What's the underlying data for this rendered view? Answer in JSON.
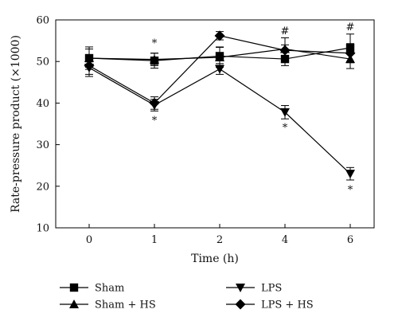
{
  "chart_data": {
    "type": "line",
    "xlabel": "Time (h)",
    "ylabel": "Rate-pressure product (×1000)",
    "ylim": [
      10,
      60
    ],
    "x": [
      0,
      1,
      2,
      4,
      6
    ],
    "x_tick_labels": [
      "0",
      "1",
      "2",
      "4",
      "6"
    ],
    "y_ticks": [
      10,
      20,
      30,
      40,
      50,
      60
    ],
    "grid": false,
    "legend_position": "bottom",
    "series": [
      {
        "name": "Sham",
        "marker": "square",
        "values": [
          50.8,
          50.2,
          51.3,
          50.6,
          53.3
        ],
        "errors": [
          2.7,
          1.8,
          2.2,
          1.6,
          3.3
        ]
      },
      {
        "name": "LPS",
        "marker": "triangle-down",
        "values": [
          48.5,
          39.5,
          48.2,
          37.8,
          23.0
        ],
        "errors": [
          1.6,
          1.4,
          1.3,
          1.6,
          1.5
        ]
      },
      {
        "name": "Sham + HS",
        "marker": "triangle-up",
        "values": [
          50.8,
          50.5,
          51.0,
          53.0,
          50.6
        ],
        "errors": [
          2.2,
          1.5,
          2.4,
          2.7,
          2.3
        ]
      },
      {
        "name": "LPS + HS",
        "marker": "diamond",
        "values": [
          49.0,
          40.0,
          56.2,
          52.7,
          52.0
        ],
        "errors": [
          2.6,
          1.5,
          1.0,
          1.3,
          2.3
        ]
      }
    ],
    "annotations": [
      {
        "text": "*",
        "x": 1,
        "y": 54.5
      },
      {
        "text": "*",
        "x": 1,
        "y": 36.0
      },
      {
        "text": "#",
        "x": 4,
        "y": 57.5
      },
      {
        "text": "*",
        "x": 4,
        "y": 34.2
      },
      {
        "text": "#",
        "x": 6,
        "y": 58.5
      },
      {
        "text": "*",
        "x": 6,
        "y": 19.3
      }
    ],
    "legend": [
      {
        "label": "Sham",
        "marker": "square"
      },
      {
        "label": "LPS",
        "marker": "triangle-down"
      },
      {
        "label": "Sham + HS",
        "marker": "triangle-up"
      },
      {
        "label": "LPS + HS",
        "marker": "diamond"
      }
    ]
  }
}
